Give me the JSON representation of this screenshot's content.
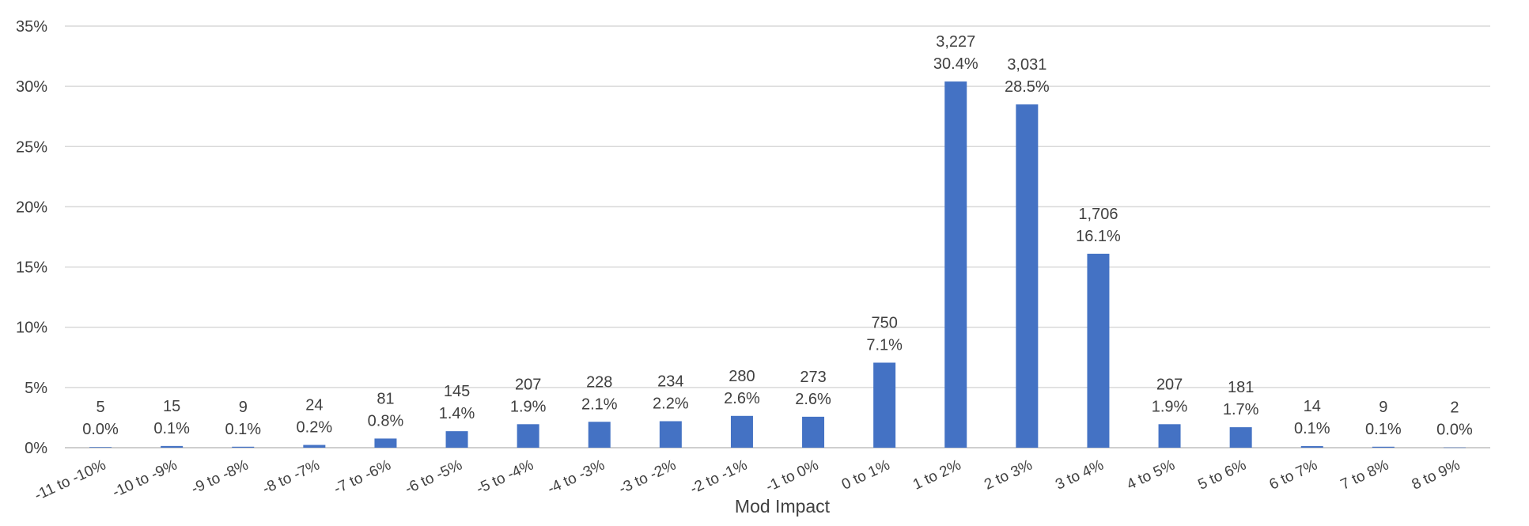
{
  "chart_data": {
    "type": "bar",
    "title": "",
    "xlabel": "Mod Impact",
    "ylabel": "",
    "ylim": [
      0,
      35
    ],
    "y_ticks": [
      "0%",
      "5%",
      "10%",
      "15%",
      "20%",
      "25%",
      "30%",
      "35%"
    ],
    "grid": true,
    "legend": "none",
    "bar_color": "#4472C4",
    "categories": [
      "-11 to -10%",
      "-10 to -9%",
      "-9 to -8%",
      "-8 to -7%",
      "-7 to -6%",
      "-6 to -5%",
      "-5 to -4%",
      "-4 to -3%",
      "-3 to -2%",
      "-2 to -1%",
      "-1 to 0%",
      "0 to 1%",
      "1 to 2%",
      "2 to 3%",
      "3 to 4%",
      "4 to 5%",
      "5 to 6%",
      "6 to 7%",
      "7 to 8%",
      "8 to 9%"
    ],
    "values": [
      0.05,
      0.14,
      0.08,
      0.23,
      0.76,
      1.37,
      1.95,
      2.15,
      2.2,
      2.64,
      2.57,
      7.06,
      30.4,
      28.5,
      16.1,
      1.95,
      1.7,
      0.13,
      0.08,
      0.02
    ],
    "counts": [
      "5",
      "15",
      "9",
      "24",
      "81",
      "145",
      "207",
      "228",
      "234",
      "280",
      "273",
      "750",
      "3,227",
      "3,031",
      "1,706",
      "207",
      "181",
      "14",
      "9",
      "2"
    ],
    "percent_labels": [
      "0.0%",
      "0.1%",
      "0.1%",
      "0.2%",
      "0.8%",
      "1.4%",
      "1.9%",
      "2.1%",
      "2.2%",
      "2.6%",
      "2.6%",
      "7.1%",
      "30.4%",
      "28.5%",
      "16.1%",
      "1.9%",
      "1.7%",
      "0.1%",
      "0.1%",
      "0.0%"
    ]
  }
}
